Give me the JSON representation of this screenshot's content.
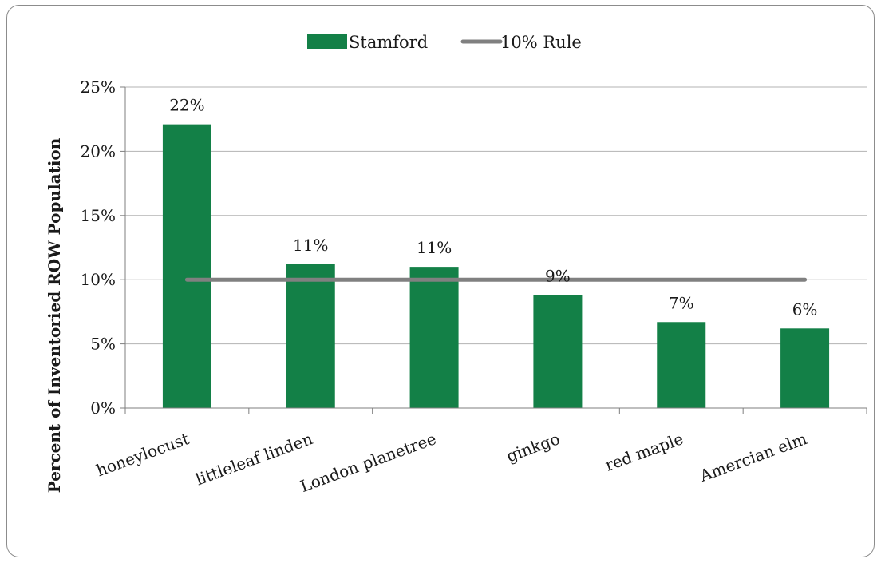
{
  "chart_data": {
    "type": "bar",
    "categories": [
      "honeylocust",
      "littleleaf linden",
      "London planetree",
      "ginkgo",
      "red maple",
      "Amercian elm"
    ],
    "series": [
      {
        "name": "Stamford",
        "values": [
          22.1,
          11.2,
          11.0,
          8.8,
          6.7,
          6.2
        ],
        "color": "#138047"
      }
    ],
    "reference_line": {
      "name": "10% Rule",
      "value": 10,
      "color": "#808080"
    },
    "data_labels": [
      "22%",
      "11%",
      "11%",
      "9%",
      "7%",
      "6%"
    ],
    "ylabel": "Percent of Inventoried ROW Population",
    "xlabel": "",
    "ylim": [
      0,
      25
    ],
    "yticks": [
      0,
      5,
      10,
      15,
      20,
      25
    ],
    "ytick_labels": [
      "0%",
      "5%",
      "10%",
      "15%",
      "20%",
      "25%"
    ],
    "grid": true,
    "legend_position": "top"
  }
}
